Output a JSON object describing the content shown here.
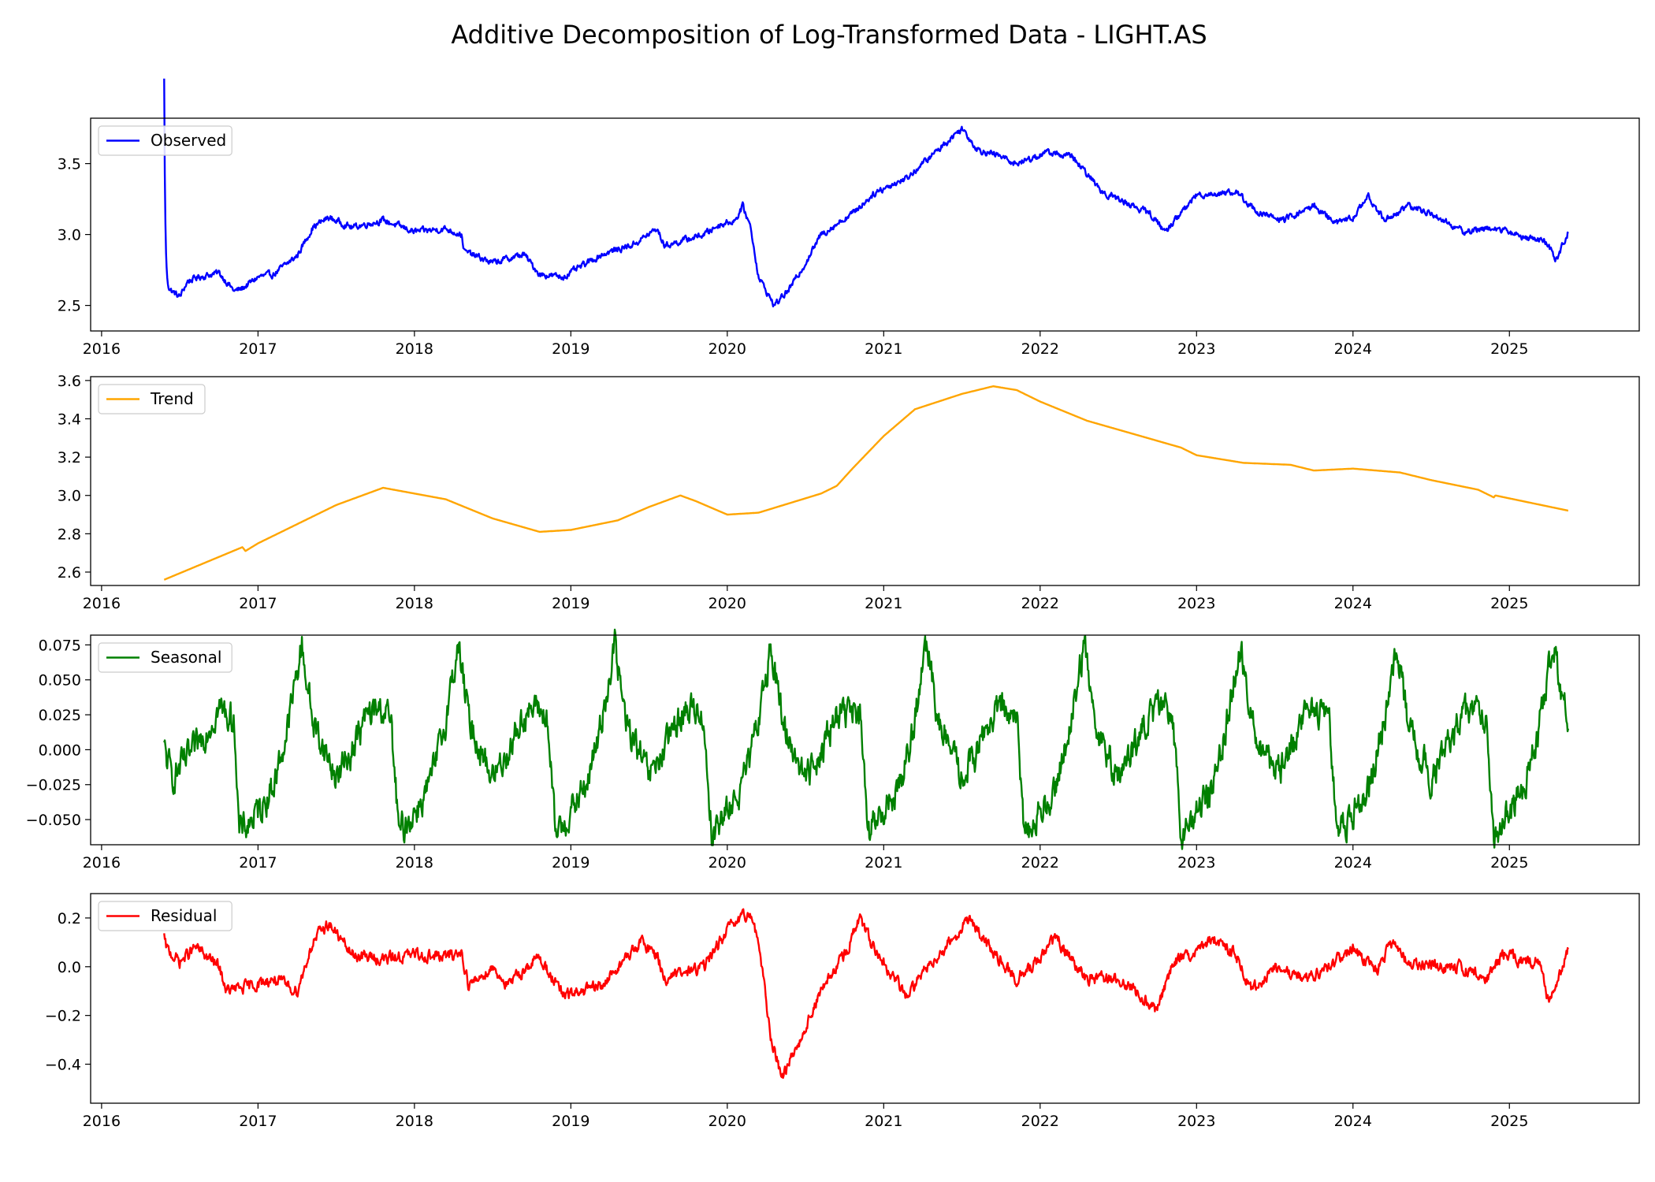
{
  "figure": {
    "title": "Additive Decomposition of Log-Transformed Data - LIGHT.AS"
  },
  "chart_data": [
    {
      "type": "line",
      "legend": "Observed",
      "legend_position": "top-left",
      "color": "#0000ff",
      "xlim": [
        2015.93,
        2025.83
      ],
      "ylim": [
        2.32,
        3.82
      ],
      "xticks": [
        2016,
        2017,
        2018,
        2019,
        2020,
        2021,
        2022,
        2023,
        2024,
        2025
      ],
      "yticks": [
        2.5,
        3.0,
        3.5
      ],
      "ytick_labels": [
        "2.5",
        "3.0",
        "3.5"
      ],
      "x": [
        2016.4,
        2016.5,
        2016.55,
        2016.62,
        2016.75,
        2016.85,
        2016.9,
        2017.0,
        2017.1,
        2017.25,
        2017.35,
        2017.45,
        2017.6,
        2017.8,
        2018.0,
        2018.2,
        2018.3,
        2018.32,
        2018.5,
        2018.7,
        2018.8,
        2018.95,
        2019.2,
        2019.4,
        2019.55,
        2019.6,
        2019.85,
        2019.95,
        2020.05,
        2020.1,
        2020.15,
        2020.2,
        2020.3,
        2020.4,
        2020.5,
        2020.6,
        2020.8,
        2020.95,
        2021.15,
        2021.3,
        2021.5,
        2021.6,
        2021.75,
        2021.85,
        2022.05,
        2022.2,
        2022.4,
        2022.5,
        2022.7,
        2022.8,
        2023.0,
        2023.25,
        2023.4,
        2023.55,
        2023.75,
        2023.9,
        2024.0,
        2024.1,
        2024.2,
        2024.35,
        2024.5,
        2024.7,
        2024.9,
        2025.1,
        2025.2,
        2025.25,
        2025.3,
        2025.38
      ],
      "values": [
        2.64,
        2.56,
        2.67,
        2.7,
        2.73,
        2.6,
        2.62,
        2.7,
        2.72,
        2.85,
        3.05,
        3.12,
        3.05,
        3.1,
        3.02,
        3.04,
        3.0,
        2.88,
        2.8,
        2.86,
        2.72,
        2.7,
        2.86,
        2.93,
        3.04,
        2.92,
        3.0,
        3.07,
        3.1,
        3.2,
        3.05,
        2.7,
        2.5,
        2.62,
        2.8,
        3.0,
        3.15,
        3.3,
        3.4,
        3.55,
        3.75,
        3.6,
        3.55,
        3.5,
        3.58,
        3.55,
        3.3,
        3.25,
        3.15,
        3.02,
        3.28,
        3.3,
        3.15,
        3.1,
        3.2,
        3.08,
        3.12,
        3.27,
        3.1,
        3.2,
        3.15,
        3.02,
        3.05,
        2.98,
        2.96,
        2.92,
        2.82,
        3.03
      ],
      "noise_amp": 0.018
    },
    {
      "type": "line",
      "legend": "Trend",
      "legend_position": "top-left",
      "color": "#ffa500",
      "xlim": [
        2015.93,
        2025.83
      ],
      "ylim": [
        2.53,
        3.62
      ],
      "xticks": [
        2016,
        2017,
        2018,
        2019,
        2020,
        2021,
        2022,
        2023,
        2024,
        2025
      ],
      "yticks": [
        2.6,
        2.8,
        3.0,
        3.2,
        3.4,
        3.6
      ],
      "ytick_labels": [
        "2.6",
        "2.8",
        "3.0",
        "3.2",
        "3.4",
        "3.6"
      ],
      "x": [
        2016.4,
        2016.9,
        2016.92,
        2017.0,
        2017.2,
        2017.5,
        2017.8,
        2018.2,
        2018.5,
        2018.8,
        2019.0,
        2019.3,
        2019.5,
        2019.7,
        2019.8,
        2020.0,
        2020.2,
        2020.4,
        2020.6,
        2020.7,
        2020.8,
        2021.0,
        2021.2,
        2021.5,
        2021.7,
        2021.85,
        2022.0,
        2022.3,
        2022.6,
        2022.9,
        2023.0,
        2023.3,
        2023.6,
        2023.75,
        2024.0,
        2024.3,
        2024.5,
        2024.8,
        2024.9,
        2024.91,
        2025.38
      ],
      "values": [
        2.56,
        2.73,
        2.71,
        2.75,
        2.83,
        2.95,
        3.04,
        2.98,
        2.88,
        2.81,
        2.82,
        2.87,
        2.94,
        3.0,
        2.97,
        2.9,
        2.91,
        2.96,
        3.01,
        3.05,
        3.14,
        3.31,
        3.45,
        3.53,
        3.57,
        3.55,
        3.49,
        3.39,
        3.32,
        3.25,
        3.21,
        3.17,
        3.16,
        3.13,
        3.14,
        3.12,
        3.08,
        3.03,
        2.99,
        3.0,
        2.92
      ],
      "noise_amp": 0
    },
    {
      "type": "line",
      "legend": "Seasonal",
      "legend_position": "top-left",
      "color": "#008000",
      "xlim": [
        2015.93,
        2025.83
      ],
      "ylim": [
        -0.068,
        0.082
      ],
      "xticks": [
        2016,
        2017,
        2018,
        2019,
        2020,
        2021,
        2022,
        2023,
        2024,
        2025
      ],
      "yticks": [
        -0.05,
        -0.025,
        0.0,
        0.025,
        0.05,
        0.075
      ],
      "ytick_labels": [
        "−0.050",
        "−0.025",
        "0.000",
        "0.025",
        "0.050",
        "0.075"
      ],
      "x": [
        2016.4,
        2016.45,
        2016.6,
        2016.75,
        2016.85,
        2016.88,
        2017.0,
        2017.1,
        2017.18,
        2017.28,
        2017.35,
        2017.5,
        2017.6,
        2017.7,
        2017.8,
        2017.85,
        2017.9,
        2018.0,
        2018.1,
        2018.18,
        2018.28,
        2018.35,
        2018.5,
        2018.6,
        2018.7,
        2018.8,
        2018.85,
        2018.9,
        2019.0,
        2019.1,
        2019.18,
        2019.28,
        2019.35,
        2019.5,
        2019.6,
        2019.7,
        2019.8,
        2019.85,
        2019.9,
        2020.0,
        2020.1,
        2020.18,
        2020.28,
        2020.35,
        2020.5,
        2020.6,
        2020.7,
        2020.8,
        2020.85,
        2020.9,
        2021.0,
        2021.1,
        2021.18,
        2021.28,
        2021.35,
        2021.5,
        2021.6,
        2021.7,
        2021.8,
        2021.85,
        2021.9,
        2022.0,
        2022.1,
        2022.18,
        2022.28,
        2022.35,
        2022.5,
        2022.6,
        2022.7,
        2022.8,
        2022.85,
        2022.9,
        2023.0,
        2023.1,
        2023.18,
        2023.28,
        2023.35,
        2023.5,
        2023.6,
        2023.7,
        2023.8,
        2023.85,
        2023.9,
        2024.0,
        2024.1,
        2024.18,
        2024.28,
        2024.35,
        2024.5,
        2024.6,
        2024.7,
        2024.8,
        2024.85,
        2024.9,
        2025.0,
        2025.1,
        2025.18,
        2025.28,
        2025.38
      ],
      "values": [
        0.0,
        -0.02,
        0.0,
        0.03,
        0.02,
        -0.06,
        -0.045,
        -0.025,
        0.01,
        0.075,
        0.02,
        -0.02,
        0.0,
        0.025,
        0.03,
        0.02,
        -0.06,
        -0.045,
        -0.025,
        0.01,
        0.075,
        0.02,
        -0.02,
        0.0,
        0.025,
        0.03,
        0.02,
        -0.06,
        -0.045,
        -0.025,
        0.01,
        0.075,
        0.02,
        -0.02,
        0.0,
        0.025,
        0.03,
        0.02,
        -0.06,
        -0.045,
        -0.025,
        0.01,
        0.075,
        0.02,
        -0.02,
        0.0,
        0.025,
        0.03,
        0.02,
        -0.06,
        -0.045,
        -0.025,
        0.01,
        0.075,
        0.02,
        -0.02,
        0.0,
        0.025,
        0.03,
        0.02,
        -0.06,
        -0.045,
        -0.025,
        0.01,
        0.075,
        0.02,
        -0.02,
        0.0,
        0.025,
        0.03,
        0.02,
        -0.06,
        -0.045,
        -0.025,
        0.01,
        0.075,
        0.02,
        -0.02,
        0.0,
        0.025,
        0.03,
        0.02,
        -0.06,
        -0.045,
        -0.025,
        0.01,
        0.075,
        0.02,
        -0.02,
        0.0,
        0.025,
        0.03,
        0.02,
        -0.06,
        -0.045,
        -0.025,
        0.01,
        0.075,
        0.015
      ],
      "noise_amp": 0.009
    },
    {
      "type": "line",
      "legend": "Residual",
      "legend_position": "top-left",
      "color": "#ff0000",
      "xlim": [
        2015.93,
        2025.83
      ],
      "ylim": [
        -0.56,
        0.3
      ],
      "xticks": [
        2016,
        2017,
        2018,
        2019,
        2020,
        2021,
        2022,
        2023,
        2024,
        2025
      ],
      "yticks": [
        -0.4,
        -0.2,
        0.0,
        0.2
      ],
      "ytick_labels": [
        "−0.4",
        "−0.2",
        "0.0",
        "0.2"
      ],
      "x": [
        2016.4,
        2016.5,
        2016.6,
        2016.75,
        2016.8,
        2016.95,
        2017.1,
        2017.25,
        2017.35,
        2017.45,
        2017.6,
        2017.8,
        2018.0,
        2018.2,
        2018.3,
        2018.35,
        2018.5,
        2018.6,
        2018.7,
        2018.8,
        2018.95,
        2019.2,
        2019.3,
        2019.45,
        2019.55,
        2019.6,
        2019.85,
        2020.0,
        2020.1,
        2020.15,
        2020.2,
        2020.28,
        2020.35,
        2020.45,
        2020.6,
        2020.75,
        2020.85,
        2020.95,
        2021.15,
        2021.3,
        2021.45,
        2021.55,
        2021.7,
        2021.85,
        2022.0,
        2022.1,
        2022.3,
        2022.5,
        2022.65,
        2022.75,
        2022.85,
        2023.0,
        2023.1,
        2023.25,
        2023.35,
        2023.5,
        2023.65,
        2023.8,
        2023.95,
        2024.0,
        2024.15,
        2024.25,
        2024.35,
        2024.5,
        2024.7,
        2024.85,
        2024.95,
        2025.1,
        2025.2,
        2025.25,
        2025.3,
        2025.38
      ],
      "values": [
        0.08,
        0.02,
        0.08,
        0.0,
        -0.1,
        -0.08,
        -0.05,
        -0.1,
        0.1,
        0.18,
        0.05,
        0.03,
        0.05,
        0.04,
        0.06,
        -0.08,
        0.0,
        -0.08,
        -0.01,
        0.04,
        -0.12,
        -0.08,
        0.0,
        0.1,
        0.05,
        -0.05,
        0.0,
        0.15,
        0.2,
        0.22,
        0.1,
        -0.3,
        -0.45,
        -0.32,
        -0.1,
        0.05,
        0.2,
        0.05,
        -0.12,
        0.02,
        0.12,
        0.2,
        0.05,
        -0.05,
        0.03,
        0.12,
        -0.05,
        -0.05,
        -0.12,
        -0.18,
        0.02,
        0.05,
        0.12,
        0.05,
        -0.1,
        0.0,
        -0.05,
        -0.02,
        0.05,
        0.08,
        -0.02,
        0.1,
        0.02,
        0.0,
        0.0,
        -0.05,
        0.05,
        0.02,
        0.02,
        -0.15,
        -0.08,
        0.08
      ],
      "noise_amp": 0.02
    }
  ]
}
